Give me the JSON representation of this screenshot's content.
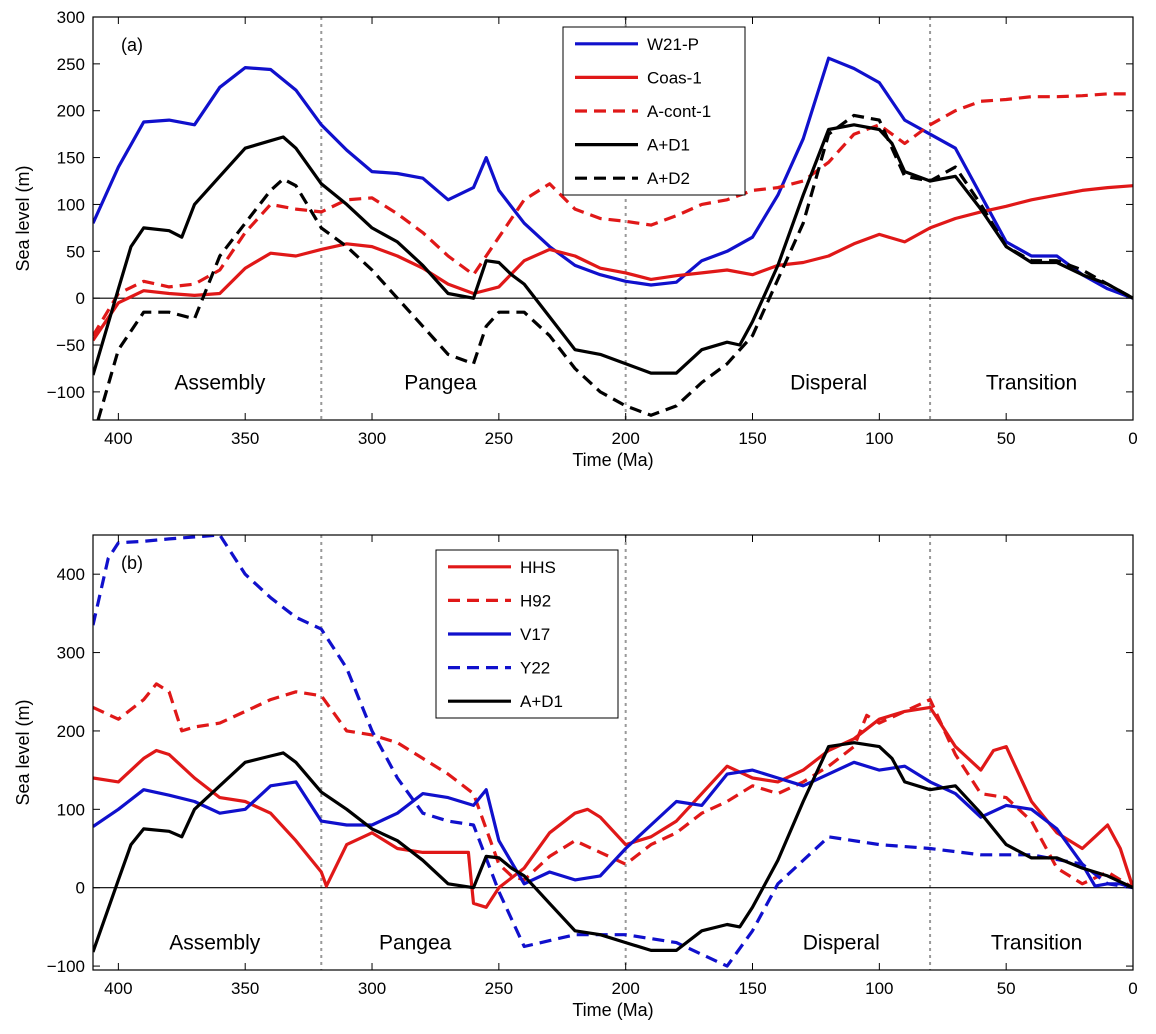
{
  "chart_data": [
    {
      "type": "line",
      "panel_label": "(a)",
      "xlabel": "Time (Ma)",
      "ylabel": "Sea level (m)",
      "xlim": [
        410,
        0
      ],
      "ylim": [
        -130,
        300
      ],
      "x_reversed": true,
      "xticks": [
        400,
        350,
        300,
        250,
        200,
        150,
        100,
        50,
        0
      ],
      "yticks": [
        -100,
        -50,
        0,
        50,
        100,
        150,
        200,
        250,
        300
      ],
      "ytick_labels": [
        "−100",
        "−50",
        "0",
        "50",
        "100",
        "150",
        "200",
        "250",
        "300"
      ],
      "vlines": [
        320,
        200,
        80
      ],
      "zero_line": true,
      "grid": false,
      "legend_position": "top-center",
      "annotations": [
        {
          "text": "Assembly",
          "x": 360,
          "y": -90
        },
        {
          "text": "Pangea",
          "x": 273,
          "y": -90
        },
        {
          "text": "Disperal",
          "x": 120,
          "y": -90
        },
        {
          "text": "Transition",
          "x": 40,
          "y": -90
        }
      ],
      "series": [
        {
          "name": "W21-P",
          "color": "#1010cc",
          "dash": "solid",
          "x": [
            410,
            400,
            390,
            380,
            370,
            360,
            350,
            340,
            330,
            320,
            310,
            300,
            290,
            280,
            270,
            260,
            255,
            250,
            240,
            230,
            220,
            210,
            200,
            190,
            180,
            170,
            160,
            150,
            140,
            130,
            120,
            110,
            100,
            90,
            80,
            70,
            60,
            50,
            40,
            30,
            20,
            10,
            0
          ],
          "y": [
            80,
            140,
            188,
            190,
            185,
            225,
            246,
            244,
            222,
            185,
            158,
            135,
            133,
            128,
            105,
            118,
            150,
            115,
            80,
            55,
            35,
            25,
            18,
            14,
            17,
            40,
            50,
            65,
            110,
            170,
            256,
            245,
            230,
            190,
            175,
            160,
            110,
            60,
            45,
            45,
            25,
            10,
            0
          ]
        },
        {
          "name": "Coas-1",
          "color": "#e01818",
          "dash": "solid",
          "x": [
            410,
            400,
            390,
            380,
            370,
            360,
            350,
            340,
            330,
            320,
            310,
            300,
            290,
            280,
            270,
            260,
            250,
            240,
            230,
            220,
            210,
            200,
            190,
            180,
            170,
            160,
            150,
            140,
            130,
            120,
            110,
            100,
            90,
            80,
            70,
            60,
            50,
            40,
            30,
            20,
            10,
            0
          ],
          "y": [
            -45,
            -5,
            8,
            5,
            3,
            5,
            32,
            48,
            45,
            52,
            58,
            55,
            45,
            32,
            15,
            5,
            12,
            40,
            52,
            45,
            32,
            27,
            20,
            24,
            27,
            30,
            25,
            35,
            38,
            45,
            58,
            68,
            60,
            75,
            85,
            92,
            98,
            105,
            110,
            115,
            118,
            120
          ]
        },
        {
          "name": "A-cont-1",
          "color": "#e01818",
          "dash": "dashed",
          "x": [
            410,
            400,
            390,
            380,
            370,
            360,
            350,
            340,
            330,
            320,
            310,
            300,
            290,
            280,
            270,
            260,
            250,
            240,
            230,
            220,
            210,
            200,
            190,
            180,
            170,
            160,
            150,
            140,
            130,
            120,
            110,
            100,
            90,
            80,
            70,
            60,
            50,
            40,
            30,
            20,
            10,
            0
          ],
          "y": [
            -40,
            5,
            18,
            12,
            15,
            30,
            70,
            100,
            95,
            92,
            105,
            107,
            90,
            70,
            45,
            25,
            65,
            105,
            122,
            95,
            85,
            82,
            78,
            88,
            100,
            105,
            115,
            118,
            125,
            145,
            175,
            185,
            165,
            185,
            200,
            210,
            212,
            215,
            215,
            216,
            218,
            218
          ]
        },
        {
          "name": "A+D1",
          "color": "#000000",
          "dash": "solid",
          "x": [
            410,
            400,
            395,
            390,
            380,
            375,
            370,
            360,
            350,
            340,
            335,
            330,
            320,
            310,
            300,
            290,
            280,
            270,
            260,
            255,
            250,
            245,
            240,
            230,
            220,
            210,
            200,
            190,
            180,
            170,
            160,
            155,
            150,
            140,
            130,
            120,
            110,
            100,
            95,
            90,
            80,
            70,
            60,
            50,
            40,
            30,
            20,
            10,
            0
          ],
          "y": [
            -82,
            10,
            55,
            75,
            72,
            65,
            100,
            130,
            160,
            168,
            172,
            160,
            122,
            100,
            75,
            60,
            35,
            5,
            0,
            40,
            38,
            25,
            15,
            -20,
            -55,
            -60,
            -70,
            -80,
            -80,
            -55,
            -47,
            -50,
            -25,
            35,
            110,
            180,
            185,
            180,
            165,
            135,
            125,
            130,
            95,
            55,
            38,
            38,
            25,
            15,
            0
          ]
        },
        {
          "name": "A+D2",
          "color": "#000000",
          "dash": "dashed",
          "x": [
            408,
            400,
            390,
            380,
            370,
            360,
            350,
            340,
            335,
            330,
            320,
            310,
            300,
            290,
            280,
            270,
            260,
            255,
            250,
            240,
            230,
            220,
            210,
            200,
            190,
            180,
            170,
            160,
            150,
            140,
            130,
            120,
            110,
            100,
            95,
            90,
            80,
            70,
            60,
            50,
            40,
            30,
            20,
            10,
            0
          ],
          "y": [
            -130,
            -55,
            -15,
            -15,
            -22,
            45,
            80,
            115,
            127,
            120,
            75,
            55,
            30,
            0,
            -30,
            -60,
            -70,
            -30,
            -15,
            -15,
            -40,
            -75,
            -100,
            -115,
            -125,
            -115,
            -90,
            -70,
            -40,
            20,
            80,
            175,
            195,
            190,
            160,
            130,
            125,
            140,
            100,
            55,
            40,
            40,
            30,
            15,
            0
          ]
        }
      ]
    },
    {
      "type": "line",
      "panel_label": "(b)",
      "xlabel": "Time (Ma)",
      "ylabel": "Sea level (m)",
      "xlim": [
        410,
        0
      ],
      "ylim": [
        -105,
        450
      ],
      "x_reversed": true,
      "xticks": [
        400,
        350,
        300,
        250,
        200,
        150,
        100,
        50,
        0
      ],
      "yticks": [
        -100,
        0,
        100,
        200,
        300,
        400
      ],
      "ytick_labels": [
        "−100",
        "0",
        "100",
        "200",
        "300",
        "400"
      ],
      "vlines": [
        320,
        200,
        80
      ],
      "zero_line": true,
      "grid": false,
      "legend_position": "top-center",
      "annotations": [
        {
          "text": "Assembly",
          "x": 362,
          "y": -70
        },
        {
          "text": "Pangea",
          "x": 283,
          "y": -70
        },
        {
          "text": "Disperal",
          "x": 115,
          "y": -70
        },
        {
          "text": "Transition",
          "x": 38,
          "y": -70
        }
      ],
      "series": [
        {
          "name": "HHS",
          "color": "#e01818",
          "dash": "solid",
          "x": [
            410,
            400,
            390,
            385,
            380,
            370,
            360,
            350,
            340,
            330,
            320,
            318,
            310,
            300,
            290,
            280,
            270,
            262,
            260,
            255,
            250,
            240,
            230,
            220,
            215,
            210,
            200,
            190,
            180,
            170,
            160,
            150,
            140,
            130,
            120,
            110,
            100,
            90,
            80,
            70,
            60,
            55,
            50,
            40,
            30,
            20,
            15,
            10,
            5,
            0
          ],
          "y": [
            140,
            135,
            165,
            175,
            170,
            140,
            115,
            110,
            95,
            60,
            20,
            2,
            55,
            70,
            50,
            45,
            45,
            45,
            -20,
            -25,
            0,
            25,
            70,
            95,
            100,
            90,
            55,
            65,
            85,
            120,
            155,
            140,
            135,
            150,
            175,
            190,
            215,
            225,
            230,
            180,
            150,
            175,
            180,
            110,
            70,
            50,
            65,
            80,
            50,
            0
          ]
        },
        {
          "name": "H92",
          "color": "#e01818",
          "dash": "dashed",
          "x": [
            410,
            400,
            390,
            385,
            380,
            375,
            370,
            360,
            350,
            340,
            330,
            320,
            310,
            300,
            290,
            280,
            270,
            260,
            250,
            245,
            240,
            230,
            220,
            210,
            200,
            190,
            180,
            170,
            160,
            150,
            140,
            130,
            120,
            110,
            105,
            100,
            90,
            80,
            70,
            60,
            50,
            40,
            30,
            20,
            10,
            0
          ],
          "y": [
            230,
            215,
            240,
            260,
            250,
            200,
            205,
            210,
            225,
            240,
            250,
            245,
            200,
            195,
            185,
            165,
            145,
            120,
            30,
            15,
            10,
            40,
            60,
            45,
            30,
            55,
            70,
            95,
            110,
            130,
            120,
            135,
            155,
            180,
            220,
            210,
            225,
            240,
            170,
            120,
            115,
            85,
            25,
            5,
            20,
            0
          ]
        },
        {
          "name": "V17",
          "color": "#1010cc",
          "dash": "solid",
          "x": [
            410,
            400,
            390,
            380,
            370,
            360,
            350,
            340,
            330,
            320,
            310,
            300,
            290,
            280,
            270,
            260,
            255,
            250,
            240,
            230,
            220,
            210,
            200,
            190,
            180,
            170,
            160,
            150,
            140,
            130,
            120,
            110,
            100,
            90,
            80,
            70,
            60,
            50,
            40,
            30,
            20,
            15,
            10,
            5,
            0
          ],
          "y": [
            78,
            100,
            125,
            118,
            110,
            95,
            100,
            130,
            135,
            85,
            80,
            80,
            95,
            120,
            115,
            105,
            125,
            60,
            5,
            20,
            10,
            15,
            50,
            80,
            110,
            105,
            145,
            150,
            140,
            130,
            145,
            160,
            150,
            155,
            135,
            120,
            90,
            105,
            100,
            75,
            30,
            2,
            5,
            5,
            0
          ]
        },
        {
          "name": "Y22",
          "color": "#1010cc",
          "dash": "dashed",
          "x": [
            410,
            404,
            400,
            390,
            380,
            360,
            350,
            340,
            330,
            320,
            310,
            305,
            300,
            290,
            280,
            270,
            260,
            250,
            240,
            220,
            200,
            180,
            160,
            150,
            140,
            120,
            100,
            80,
            60,
            40,
            20,
            10,
            0
          ],
          "y": [
            335,
            420,
            440,
            442,
            445,
            450,
            400,
            370,
            345,
            330,
            280,
            240,
            200,
            140,
            95,
            85,
            80,
            -5,
            -75,
            -60,
            -60,
            -70,
            -100,
            -55,
            5,
            65,
            55,
            50,
            42,
            42,
            30,
            5,
            0
          ]
        },
        {
          "name": "A+D1",
          "color": "#000000",
          "dash": "solid",
          "x": [
            410,
            400,
            395,
            390,
            380,
            375,
            370,
            360,
            350,
            340,
            335,
            330,
            320,
            310,
            300,
            290,
            280,
            270,
            260,
            255,
            250,
            245,
            240,
            230,
            220,
            210,
            200,
            190,
            180,
            170,
            160,
            155,
            150,
            140,
            130,
            120,
            110,
            100,
            95,
            90,
            80,
            70,
            60,
            50,
            40,
            30,
            20,
            10,
            0
          ],
          "y": [
            -82,
            10,
            55,
            75,
            72,
            65,
            100,
            130,
            160,
            168,
            172,
            160,
            122,
            100,
            75,
            60,
            35,
            5,
            0,
            40,
            38,
            25,
            15,
            -20,
            -55,
            -60,
            -70,
            -80,
            -80,
            -55,
            -47,
            -50,
            -25,
            35,
            110,
            180,
            185,
            180,
            165,
            135,
            125,
            130,
            95,
            55,
            38,
            38,
            25,
            15,
            0
          ]
        }
      ]
    }
  ]
}
